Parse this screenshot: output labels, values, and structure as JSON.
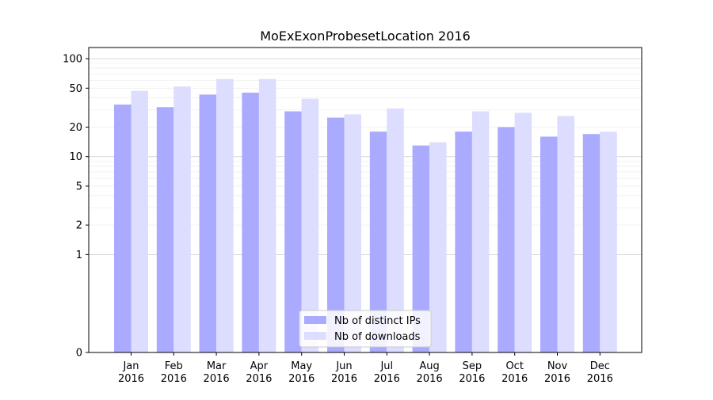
{
  "chart_data": {
    "type": "bar",
    "title": "MoExExonProbesetLocation 2016",
    "xlabel": "",
    "ylabel": "",
    "yscale": "symlog",
    "ylim": [
      0,
      130
    ],
    "yticks": [
      0,
      1,
      2,
      5,
      10,
      20,
      50,
      100
    ],
    "ytick_labels": [
      "0",
      "1",
      "2",
      "5",
      "10",
      "20",
      "50",
      "100"
    ],
    "grid": true,
    "legend_position": "bottom-center",
    "categories": [
      "Jan\n2016",
      "Feb\n2016",
      "Mar\n2016",
      "Apr\n2016",
      "May\n2016",
      "Jun\n2016",
      "Jul\n2016",
      "Aug\n2016",
      "Sep\n2016",
      "Oct\n2016",
      "Nov\n2016",
      "Dec\n2016"
    ],
    "category_lines": [
      [
        "Jan",
        "2016"
      ],
      [
        "Feb",
        "2016"
      ],
      [
        "Mar",
        "2016"
      ],
      [
        "Apr",
        "2016"
      ],
      [
        "May",
        "2016"
      ],
      [
        "Jun",
        "2016"
      ],
      [
        "Jul",
        "2016"
      ],
      [
        "Aug",
        "2016"
      ],
      [
        "Sep",
        "2016"
      ],
      [
        "Oct",
        "2016"
      ],
      [
        "Nov",
        "2016"
      ],
      [
        "Dec",
        "2016"
      ]
    ],
    "series": [
      {
        "name": "Nb of distinct IPs",
        "color": "#aaaaff",
        "values": [
          34,
          32,
          43,
          45,
          29,
          25,
          18,
          13,
          18,
          20,
          16,
          17
        ]
      },
      {
        "name": "Nb of downloads",
        "color": "#ddddff",
        "values": [
          47,
          52,
          62,
          62,
          39,
          27,
          31,
          14,
          29,
          28,
          26,
          18
        ]
      }
    ]
  }
}
